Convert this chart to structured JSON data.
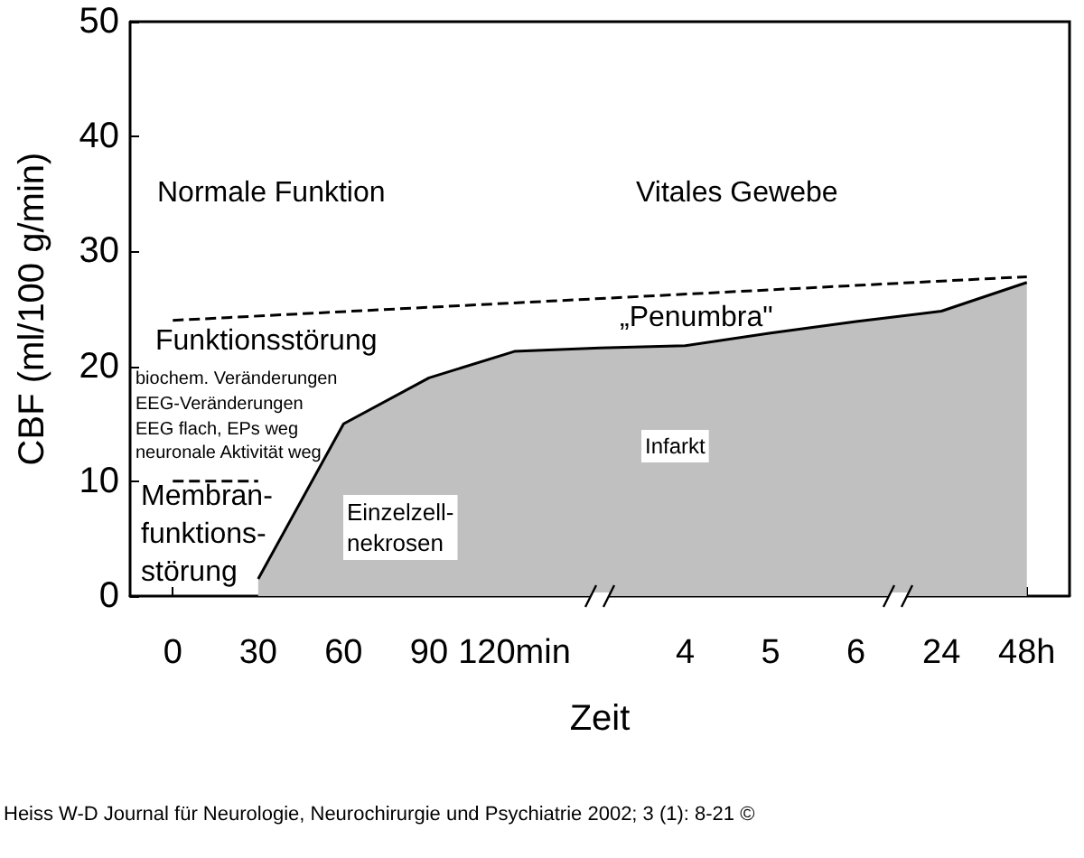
{
  "chart_data": {
    "type": "area",
    "xlabel": "Zeit",
    "ylabel": "CBF (ml/100 g/min)",
    "categories": [
      "0",
      "30",
      "60",
      "90",
      "120min",
      null,
      "4",
      "5",
      "6",
      "24",
      "48h"
    ],
    "series": [
      {
        "color": "#c0c0c0",
        "values": [
          null,
          1.5,
          15,
          19,
          21.3,
          21.6,
          21.8,
          22.9,
          23.9,
          24.8,
          27.3
        ]
      },
      {
        "type": "line",
        "color": "#000000",
        "line_style": "dashed",
        "values": [
          24,
          null,
          null,
          null,
          null,
          null,
          null,
          null,
          null,
          null,
          27.8
        ]
      },
      {
        "type": "line",
        "color": "#000000",
        "line_style": "dashed",
        "values": [
          10,
          10,
          null,
          null,
          null,
          null,
          null,
          null,
          null,
          null,
          null
        ]
      }
    ],
    "ylim": [
      0,
      50
    ],
    "yticks": [
      0,
      10,
      20,
      30,
      40,
      50
    ],
    "grid": false,
    "annotations": [
      "Normale Funktion",
      "Vitales Gewebe",
      "Funktionsstörung",
      "biochem. Veränderungen",
      "EEG-Veränderungen",
      "EEG flach, EPs weg",
      "neuronale Aktivität weg",
      "Membran-\nfunktions-\nstörung",
      "Einzelzell-\nnekrosen",
      "„Penumbra\"",
      "Infarkt",
      "Heiss W-D Journal für Neurologie, Neurochirurgie und Psychiatrie 2002; 3 (1): 8-21 ©"
    ]
  }
}
